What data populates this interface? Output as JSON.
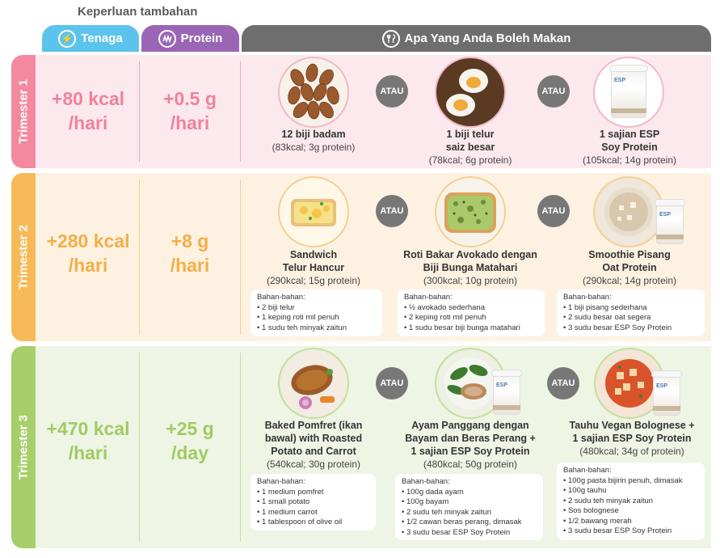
{
  "header": {
    "extra_title": "Keperluan tambahan",
    "energy": "Tenaga",
    "protein": "Protein",
    "food": "Apa Yang Anda Boleh Makan"
  },
  "or_label": "ATAU",
  "ingredients_label": "Bahan-bahan:",
  "jar_brand": "ESP",
  "trimesters": [
    {
      "label": "Trimester 1",
      "energy": [
        "+80 kcal",
        "/hari"
      ],
      "protein": [
        "+0.5 g",
        "/hari"
      ],
      "foods": [
        {
          "name": [
            "12 biji badam"
          ],
          "nutrition": "(83kcal; 3g protein)"
        },
        {
          "name": [
            "1 biji telur",
            "saiz besar"
          ],
          "nutrition": "(78kcal; 6g protein)"
        },
        {
          "name": [
            "1 sajian ESP",
            "Soy Protein"
          ],
          "nutrition": "(105kcal; 14g protein)"
        }
      ]
    },
    {
      "label": "Trimester 2",
      "energy": [
        "+280 kcal",
        "/hari"
      ],
      "protein": [
        "+8 g",
        "/hari"
      ],
      "foods": [
        {
          "name": [
            "Sandwich",
            "Telur Hancur"
          ],
          "nutrition": "(290kcal; 15g protein)",
          "ingredients": [
            "2 biji telur",
            "1 keping roti mil penuh",
            "1 sudu teh minyak zaitun"
          ]
        },
        {
          "name": [
            "Roti Bakar Avokado dengan",
            "Biji Bunga Matahari"
          ],
          "nutrition": "(300kcal; 10g protein)",
          "ingredients": [
            "½ avokado sederhana",
            "2 keping roti mil penuh",
            "1 sudu besar biji bunga matahari"
          ]
        },
        {
          "name": [
            "Smoothie Pisang",
            "Oat Protein"
          ],
          "nutrition": "(290kcal; 14g protein)",
          "ingredients": [
            "1 biji pisang sederhana",
            "2 sudu besar oat segera",
            "3 sudu besar ESP Soy Protein"
          ]
        }
      ]
    },
    {
      "label": "Trimester 3",
      "energy": [
        "+470 kcal",
        "/hari"
      ],
      "protein": [
        "+25 g",
        "/day"
      ],
      "foods": [
        {
          "name": [
            "Baked Pomfret (ikan",
            "bawal) with Roasted",
            "Potato and Carrot"
          ],
          "nutrition": "(540kcal; 30g protein)",
          "ingredients": [
            "1 medium pomfret",
            "1 small potato",
            "1 medium carrot",
            "1 tablespoon of olive oil"
          ]
        },
        {
          "name": [
            "Ayam Panggang dengan",
            "Bayam dan Beras Perang +",
            "1 sajian ESP Soy Protein"
          ],
          "nutrition": "(480kcal; 50g protein)",
          "ingredients": [
            "100g dada ayam",
            "100g bayam",
            "2 sudu teh minyak zaitun",
            "1/2 cawan beras perang, dimasak",
            "3 sudu besar ESP Soy Protein"
          ]
        },
        {
          "name": [
            "Tauhu Vegan Bolognese +",
            "1 sajian ESP Soy Protein"
          ],
          "nutrition": "(480kcal; 34g of protein)",
          "ingredients": [
            "100g pasta bijirin penuh, dimasak",
            "100g tauhu",
            "2 sudu teh minyak zaitun",
            "Sos bolognese",
            "1/2 bawang merah",
            "3 sudu besar ESP Soy Protein"
          ]
        }
      ]
    }
  ]
}
